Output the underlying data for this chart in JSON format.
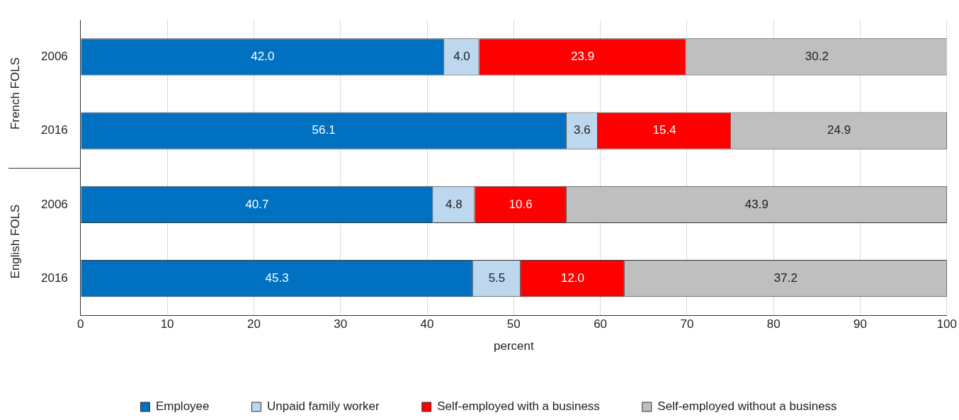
{
  "chart_data": {
    "type": "bar",
    "orientation": "horizontal",
    "stacked": true,
    "categories": [
      "2006",
      "2016",
      "2006",
      "2016"
    ],
    "series": [
      {
        "name": "Employee",
        "color": "#0070c0",
        "values": [
          42.0,
          56.1,
          40.7,
          45.3
        ],
        "value_labels": [
          "42.0",
          "56.1",
          "40.7",
          "45.3"
        ]
      },
      {
        "name": "Unpaid family worker",
        "color": "#bdd7ee",
        "values": [
          4.0,
          3.6,
          4.8,
          5.5
        ],
        "value_labels": [
          "4.0",
          "3.6",
          "4.8",
          "5.5"
        ]
      },
      {
        "name": "Self-employed with a business",
        "color": "#ff0000",
        "values": [
          23.9,
          15.4,
          10.6,
          12.0
        ],
        "value_labels": [
          "23.9",
          "15.4",
          "10.6",
          "12.0"
        ]
      },
      {
        "name": "Self-employed without a business",
        "color": "#bfbfbf",
        "values": [
          30.2,
          24.9,
          43.9,
          37.2
        ],
        "value_labels": [
          "30.2",
          "24.9",
          "43.9",
          "37.2"
        ]
      }
    ],
    "xlabel": "percent",
    "xlim": [
      0,
      100
    ],
    "xticks": [
      0,
      10,
      20,
      30,
      40,
      50,
      60,
      70,
      80,
      90,
      100
    ],
    "grid": "x",
    "legend": "bottom",
    "annotations": [
      "French FOLS",
      "English FOLS"
    ]
  }
}
